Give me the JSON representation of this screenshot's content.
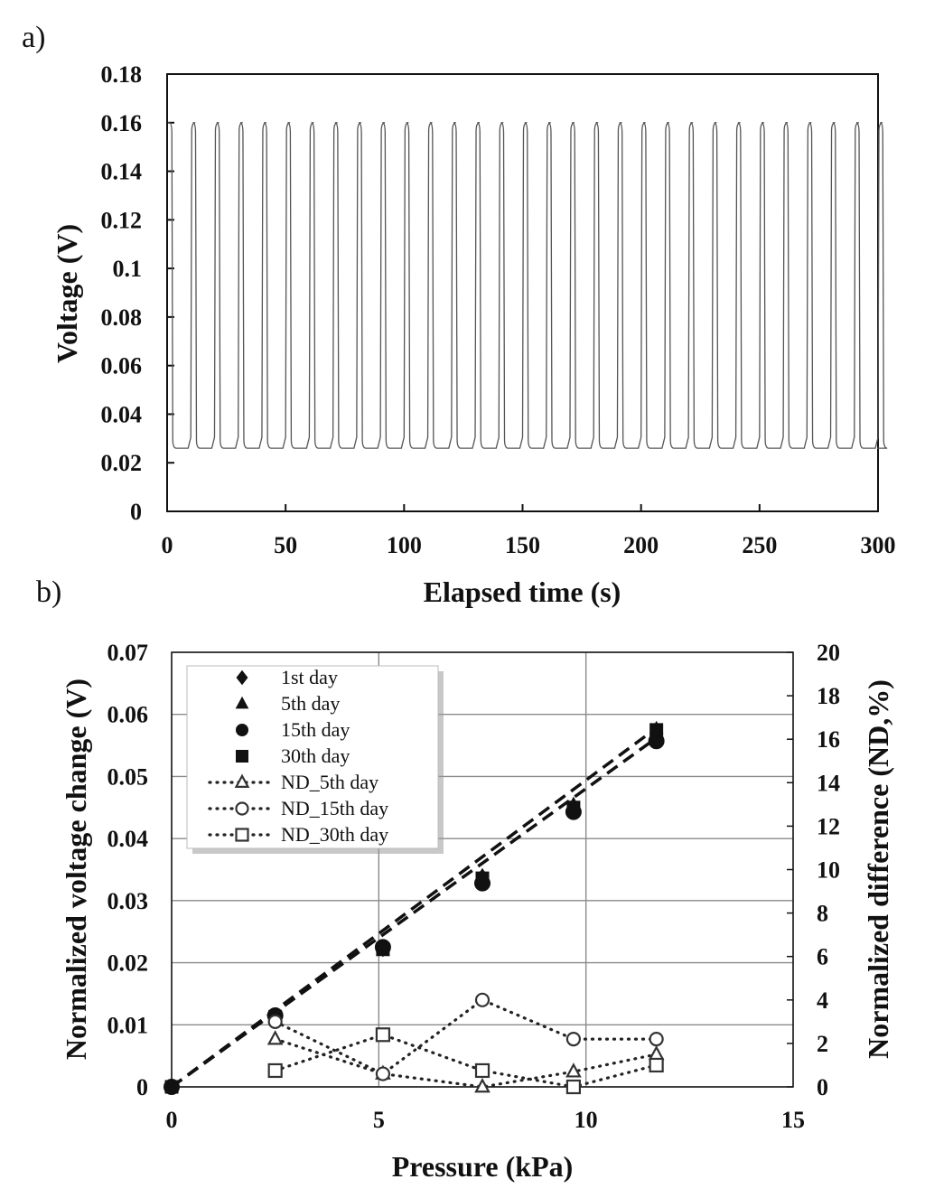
{
  "chart_data": [
    {
      "panel_label": "a)",
      "type": "line",
      "description": "square-wave voltage response, 31 pressure cycles of 10 s period",
      "xlabel": "Elapsed time (s)",
      "ylabel": "Voltage (V)",
      "xlim": [
        0,
        300
      ],
      "ylim": [
        0,
        0.18
      ],
      "xticks": [
        "0",
        "50",
        "100",
        "150",
        "200",
        "250",
        "300"
      ],
      "yticks": [
        "0",
        "0.02",
        "0.04",
        "0.06",
        "0.08",
        "0.1",
        "0.12",
        "0.14",
        "0.16",
        "0.18"
      ],
      "grid": false,
      "series": [
        {
          "high_value": 0.16,
          "low_value": 0.026,
          "period_s": 10,
          "cycles": 31,
          "first_high_start_s": 0,
          "high_duration_s": 2,
          "color": "#555555"
        }
      ]
    },
    {
      "panel_label": "b)",
      "type": "scatter",
      "xlabel": "Pressure (kPa)",
      "ylabel": "Normalized voltage change (V)",
      "y2label": "Normalized difference (ND,%)",
      "xlim": [
        0,
        15
      ],
      "ylim": [
        0,
        0.07
      ],
      "y2lim": [
        0,
        20
      ],
      "xticks": [
        "0",
        "5",
        "10",
        "15"
      ],
      "yticks": [
        "0",
        "0.01",
        "0.02",
        "0.03",
        "0.04",
        "0.05",
        "0.06",
        "0.07"
      ],
      "y2ticks": [
        "0",
        "2",
        "4",
        "6",
        "8",
        "10",
        "12",
        "14",
        "16",
        "18",
        "20"
      ],
      "grid": true,
      "legend_position": "top-left",
      "series": [
        {
          "name": "1st day",
          "marker": "diamond",
          "axis": "left",
          "x": [
            0,
            2.5,
            5.1,
            7.5,
            9.7,
            11.7
          ],
          "y": [
            0,
            0.0112,
            0.0222,
            0.0339,
            0.0452,
            0.0573
          ]
        },
        {
          "name": "5th day",
          "marker": "triangle",
          "axis": "left",
          "x": [
            0,
            2.5,
            5.1,
            7.5,
            9.7,
            11.7
          ],
          "y": [
            0,
            0.0114,
            0.0219,
            0.034,
            0.0455,
            0.0577
          ]
        },
        {
          "name": "15th day",
          "marker": "circle",
          "axis": "left",
          "x": [
            0,
            2.5,
            5.1,
            7.5,
            9.7,
            11.7
          ],
          "y": [
            0,
            0.0115,
            0.0225,
            0.0328,
            0.0443,
            0.0557
          ]
        },
        {
          "name": "30th day",
          "marker": "square",
          "axis": "left",
          "x": [
            0,
            2.5,
            5.1,
            7.5,
            9.7,
            11.7
          ],
          "y": [
            0,
            0.0113,
            0.0222,
            0.0336,
            0.045,
            0.0575
          ]
        },
        {
          "name": "ND_5th day",
          "marker": "triangle-open",
          "axis": "right",
          "line": "dotted",
          "x": [
            2.5,
            5.1,
            7.5,
            9.7,
            11.7
          ],
          "y": [
            2.2,
            0.6,
            0.0,
            0.7,
            1.5
          ]
        },
        {
          "name": "ND_15th day",
          "marker": "circle-open",
          "axis": "right",
          "line": "dotted",
          "x": [
            2.5,
            5.1,
            7.5,
            9.7,
            11.7
          ],
          "y": [
            3.0,
            0.6,
            4.0,
            2.2,
            2.2
          ]
        },
        {
          "name": "ND_30th day",
          "marker": "square-open",
          "axis": "right",
          "line": "dotted",
          "x": [
            2.5,
            5.1,
            7.5,
            9.7,
            11.7
          ],
          "y": [
            0.75,
            2.4,
            0.75,
            0.0,
            1.0
          ]
        }
      ],
      "fit_lines": [
        {
          "style": "dashed",
          "axis": "left",
          "x": [
            0,
            11.7
          ],
          "y": [
            0,
            0.0578
          ]
        },
        {
          "style": "dashed",
          "axis": "left",
          "x": [
            0,
            11.7
          ],
          "y": [
            0,
            0.0562
          ]
        }
      ]
    }
  ]
}
